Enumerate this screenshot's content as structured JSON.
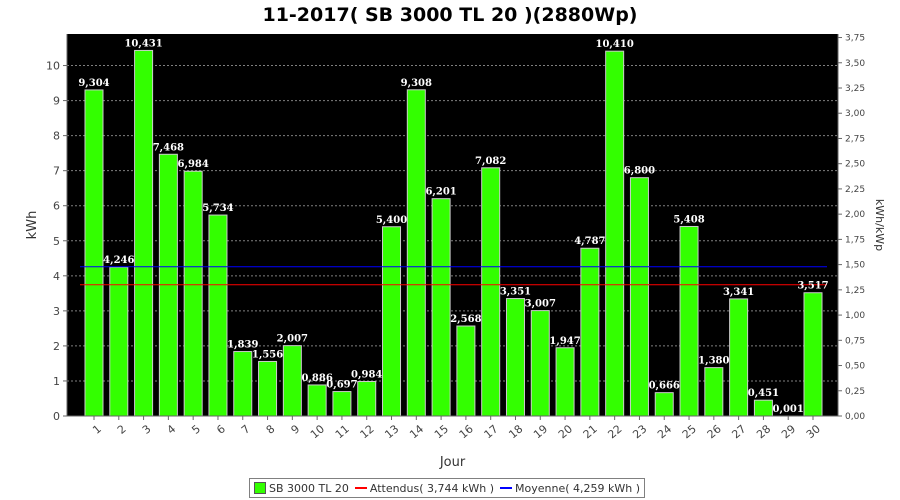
{
  "chart_data": {
    "type": "bar",
    "title": "11-2017( SB 3000 TL 20 )(2880Wp)",
    "xlabel": "Jour",
    "ylabel": "kWh",
    "y2label": "kWh/kWp",
    "ylim": [
      0,
      10.9
    ],
    "y2lim": [
      0,
      3.785
    ],
    "yticks": [
      "0",
      "1",
      "2",
      "3",
      "4",
      "5",
      "6",
      "7",
      "8",
      "9",
      "10"
    ],
    "y2ticks": [
      "0,00",
      "0,25",
      "0,50",
      "0,75",
      "1,00",
      "1,25",
      "1,50",
      "1,75",
      "2,00",
      "2,25",
      "2,50",
      "2,75",
      "3,00",
      "3,25",
      "3,50",
      "3,75"
    ],
    "grid": true,
    "categories": [
      "1",
      "2",
      "3",
      "4",
      "5",
      "6",
      "7",
      "8",
      "9",
      "10",
      "11",
      "12",
      "13",
      "14",
      "15",
      "16",
      "17",
      "18",
      "19",
      "20",
      "21",
      "22",
      "23",
      "24",
      "25",
      "26",
      "27",
      "28",
      "29",
      "30"
    ],
    "series": [
      {
        "name": "SB 3000 TL 20",
        "color": "#33ff00",
        "values": [
          9.304,
          4.246,
          10.431,
          7.468,
          6.984,
          5.734,
          1.839,
          1.556,
          2.007,
          0.886,
          0.697,
          0.984,
          5.4,
          9.308,
          6.201,
          2.568,
          7.082,
          3.351,
          3.007,
          1.947,
          4.787,
          10.41,
          6.8,
          0.666,
          5.408,
          1.38,
          3.341,
          0.451,
          0.001,
          3.517
        ],
        "labels": [
          "9,304",
          "4,246",
          "10,431",
          "7,468",
          "6,984",
          "5,734",
          "1,839",
          "1,556",
          "2,007",
          "0,886",
          "0,697",
          "0,984",
          "5,400",
          "9,308",
          "6,201",
          "2,568",
          "7,082",
          "3,351",
          "3,007",
          "1,947",
          "4,787",
          "10,410",
          "6,800",
          "0,666",
          "5,408",
          "1,380",
          "3,341",
          "0,451",
          "0,001",
          "3,517"
        ]
      }
    ],
    "reference_lines": [
      {
        "name": "Attendus",
        "value": 3.744,
        "color": "#ff0000"
      },
      {
        "name": "Moyenne",
        "value": 4.259,
        "color": "#0000ff"
      }
    ],
    "legend_position": "bottom-center",
    "legend": [
      {
        "label": "SB 3000 TL 20",
        "kind": "box",
        "color": "#33ff00"
      },
      {
        "label": "Attendus( 3,744 kWh )",
        "kind": "line",
        "color": "#ff0000"
      },
      {
        "label": "Moyenne( 4,259 kWh )",
        "kind": "line",
        "color": "#0000ff"
      }
    ],
    "colors": {
      "plot_background": "#000000",
      "grid": "#7f7f7f",
      "bar_edge": "#cccccc"
    }
  }
}
